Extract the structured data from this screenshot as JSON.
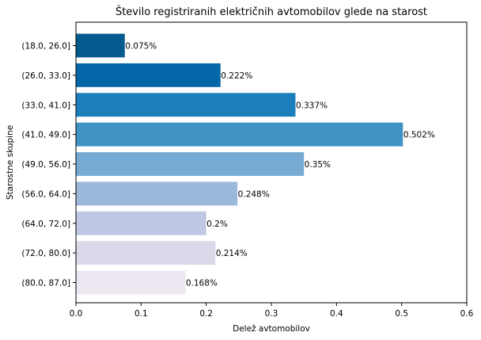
{
  "chart_data": {
    "type": "bar",
    "orientation": "horizontal",
    "title": "Število registriranih električnih avtomobilov glede na starost",
    "xlabel": "Delež avtomobilov",
    "ylabel": "Starostne skupine",
    "xlim": [
      0,
      0.6
    ],
    "xticks": [
      "0.0",
      "0.1",
      "0.2",
      "0.3",
      "0.4",
      "0.5",
      "0.6"
    ],
    "grid": false,
    "categories": [
      "(18.0, 26.0]",
      "(26.0, 33.0]",
      "(33.0, 41.0]",
      "(41.0, 49.0]",
      "(49.0, 56.0]",
      "(56.0, 64.0]",
      "(64.0, 72.0]",
      "(72.0, 80.0]",
      "(80.0, 87.0]"
    ],
    "values": [
      0.075,
      0.222,
      0.337,
      0.502,
      0.35,
      0.248,
      0.2,
      0.214,
      0.168
    ],
    "value_labels": [
      "0.075%",
      "0.222%",
      "0.337%",
      "0.502%",
      "0.35%",
      "0.248%",
      "0.2%",
      "0.214%",
      "0.168%"
    ],
    "colors": [
      "#045a8d",
      "#0567a7",
      "#1b7fbc",
      "#4093c5",
      "#78abd3",
      "#9cb8da",
      "#bec8e2",
      "#dad9ea",
      "#ede7f2"
    ]
  }
}
